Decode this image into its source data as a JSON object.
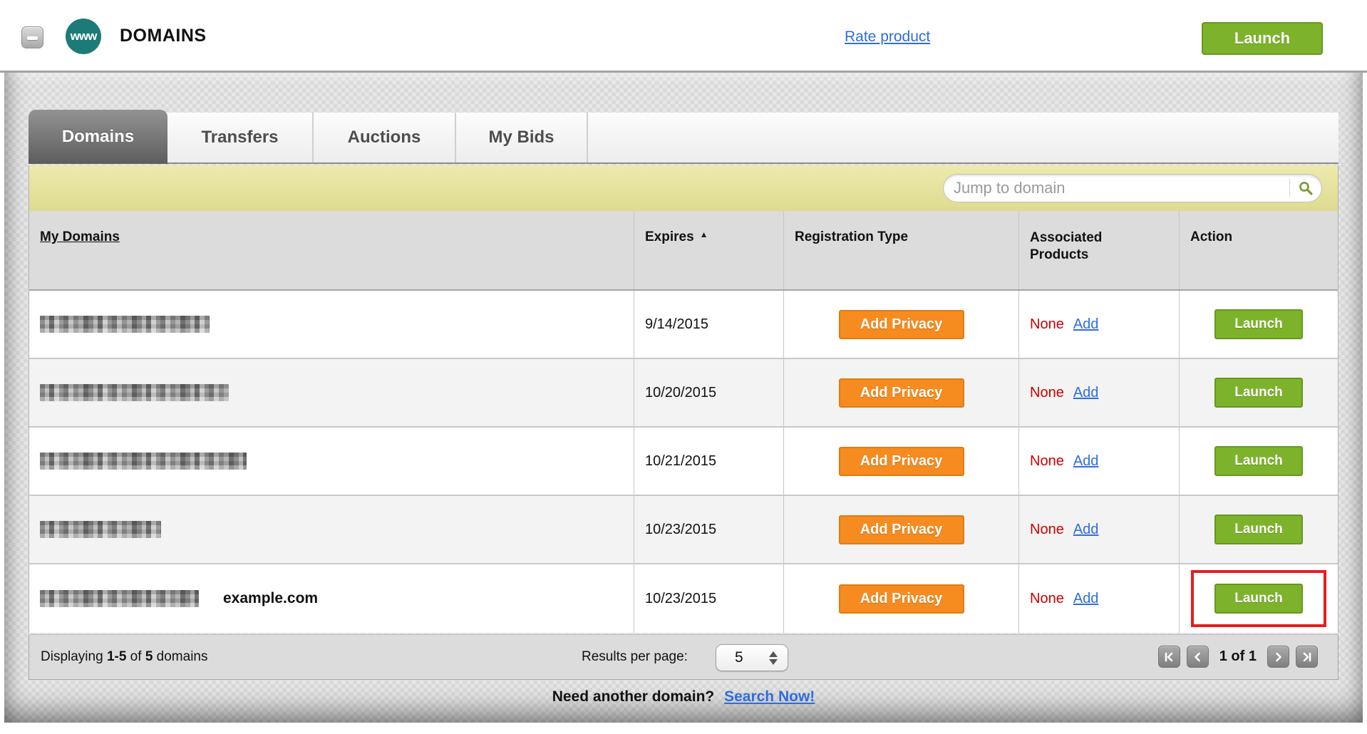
{
  "colors": {
    "green": "#7db32b",
    "green-border": "#67971f",
    "orange": "#f68b1f",
    "orange-border": "#dd7d13",
    "link": "#2e6de0",
    "red-text": "#cc0000",
    "highlight": "#e41e1e",
    "teal": "#1d7b77"
  },
  "header": {
    "logo_text": "www",
    "title": "DOMAINS",
    "rate_link": "Rate product",
    "launch_label": "Launch"
  },
  "tabs": [
    {
      "label": "Domains",
      "active": true
    },
    {
      "label": "Transfers",
      "active": false
    },
    {
      "label": "Auctions",
      "active": false
    },
    {
      "label": "My Bids",
      "active": false
    }
  ],
  "search": {
    "placeholder": "Jump to domain"
  },
  "table": {
    "columns": {
      "domains": "My Domains",
      "expires": "Expires",
      "registration": "Registration Type",
      "associated": "Associated Products",
      "action": "Action"
    },
    "sort_indicator": "▲",
    "rows": [
      {
        "redacted_width": 238,
        "annotation": "",
        "expires": "9/14/2015",
        "privacy_label": "Add Privacy",
        "associated_value": "None",
        "associated_action": "Add",
        "action_label": "Launch"
      },
      {
        "redacted_width": 265,
        "annotation": "",
        "expires": "10/20/2015",
        "privacy_label": "Add Privacy",
        "associated_value": "None",
        "associated_action": "Add",
        "action_label": "Launch"
      },
      {
        "redacted_width": 290,
        "annotation": "",
        "expires": "10/21/2015",
        "privacy_label": "Add Privacy",
        "associated_value": "None",
        "associated_action": "Add",
        "action_label": "Launch"
      },
      {
        "redacted_width": 170,
        "annotation": "",
        "expires": "10/23/2015",
        "privacy_label": "Add Privacy",
        "associated_value": "None",
        "associated_action": "Add",
        "action_label": "Launch"
      },
      {
        "redacted_width": 223,
        "annotation": "example.com",
        "expires": "10/23/2015",
        "privacy_label": "Add Privacy",
        "associated_value": "None",
        "associated_action": "Add",
        "action_label": "Launch"
      }
    ]
  },
  "footer": {
    "displaying_pre": "Displaying ",
    "displaying_range": "1-5",
    "displaying_mid": " of ",
    "displaying_total": "5",
    "displaying_post": " domains",
    "results_per_page_label": "Results per page:",
    "results_per_page_value": "5",
    "page_text": "1 of 1"
  },
  "bottom": {
    "question": "Need another domain?",
    "link": "Search Now!"
  }
}
